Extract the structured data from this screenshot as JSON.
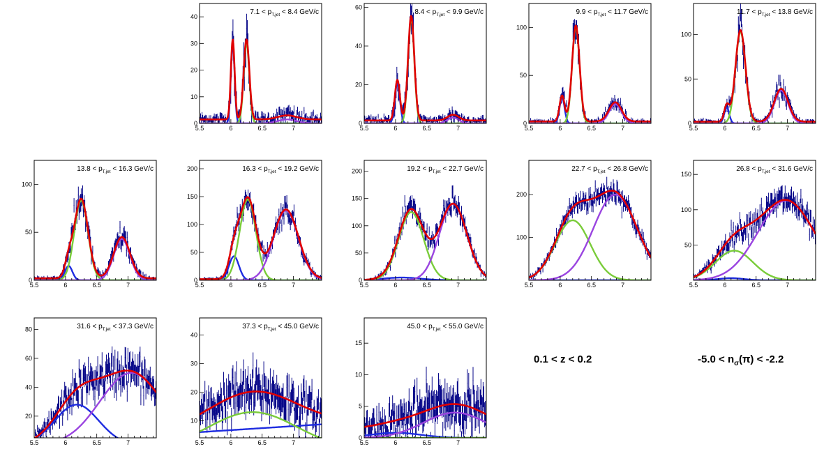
{
  "figure": {
    "z_label": "0.1 < z < 0.2",
    "nsigma_label": {
      "pre": "-5.0 < n",
      "sub": "σ",
      "post": "(π) < -2.2"
    }
  },
  "colors": {
    "data": "#0a0a8a",
    "total": "#e00000",
    "electron": "#1e2ce0",
    "pion": "#7acc3a",
    "kaon": "#9a44e0"
  },
  "chart_data": [
    {
      "type": "line",
      "label": {
        "pre": "7.1 < p",
        "sub": "T,jet",
        "post": " < 8.4 GeV/c"
      },
      "xlim": [
        5.5,
        7.45
      ],
      "xticks": [
        5.5,
        6,
        6.5,
        7
      ],
      "ylim": [
        0,
        45
      ],
      "yticks": [
        0,
        10,
        20,
        30,
        40
      ],
      "peaks": {
        "electron": {
          "A": 30,
          "mu": 6.03,
          "sigma": 0.03
        },
        "pion": {
          "A": 30,
          "mu": 6.25,
          "sigma": 0.045
        },
        "kaon": {
          "A": 1.5,
          "mu": 6.9,
          "sigma": 0.15
        }
      },
      "baseline": 1.5
    },
    {
      "type": "line",
      "label": {
        "pre": "8.4 < p",
        "sub": "T,jet",
        "post": " < 9.9 GeV/c"
      },
      "xlim": [
        5.5,
        7.45
      ],
      "xticks": [
        5.5,
        6,
        6.5,
        7
      ],
      "ylim": [
        0,
        62
      ],
      "yticks": [
        0,
        20,
        40,
        60
      ],
      "peaks": {
        "electron": {
          "A": 21,
          "mu": 6.03,
          "sigma": 0.04
        },
        "pion": {
          "A": 54,
          "mu": 6.25,
          "sigma": 0.05
        },
        "kaon": {
          "A": 3,
          "mu": 6.92,
          "sigma": 0.09
        }
      },
      "baseline": 1.5
    },
    {
      "type": "line",
      "label": {
        "pre": "9.9 < p",
        "sub": "T,jet",
        "post": " < 11.7 GeV/c"
      },
      "xlim": [
        5.5,
        7.45
      ],
      "xticks": [
        5.5,
        6,
        6.5,
        7
      ],
      "ylim": [
        0,
        125
      ],
      "yticks": [
        0,
        50,
        100
      ],
      "peaks": {
        "electron": {
          "A": 27,
          "mu": 6.03,
          "sigma": 0.04
        },
        "pion": {
          "A": 100,
          "mu": 6.25,
          "sigma": 0.06
        },
        "kaon": {
          "A": 20,
          "mu": 6.88,
          "sigma": 0.1
        }
      },
      "baseline": 2
    },
    {
      "type": "line",
      "label": {
        "pre": "11.7 < p",
        "sub": "T,jet",
        "post": " < 13.8 GeV/c"
      },
      "xlim": [
        5.5,
        7.45
      ],
      "xticks": [
        5.5,
        6,
        6.5,
        7
      ],
      "ylim": [
        0,
        135
      ],
      "yticks": [
        0,
        50,
        100
      ],
      "peaks": {
        "electron": {
          "A": 18,
          "mu": 6.03,
          "sigma": 0.04
        },
        "pion": {
          "A": 103,
          "mu": 6.25,
          "sigma": 0.08
        },
        "kaon": {
          "A": 37,
          "mu": 6.9,
          "sigma": 0.11
        }
      },
      "baseline": 2
    },
    {
      "type": "line",
      "label": {
        "pre": "13.8 < p",
        "sub": "T,jet",
        "post": " < 16.3 GeV/c"
      },
      "xlim": [
        5.5,
        7.45
      ],
      "xticks": [
        5.5,
        6,
        6.5,
        7
      ],
      "ylim": [
        0,
        125
      ],
      "yticks": [
        0,
        50,
        100
      ],
      "peaks": {
        "electron": {
          "A": 15,
          "mu": 6.05,
          "sigma": 0.06
        },
        "pion": {
          "A": 83,
          "mu": 6.25,
          "sigma": 0.11
        },
        "kaon": {
          "A": 43,
          "mu": 6.9,
          "sigma": 0.13
        }
      },
      "baseline": 2
    },
    {
      "type": "line",
      "label": {
        "pre": "16.3 < p",
        "sub": "T,jet",
        "post": " < 19.2 GeV/c"
      },
      "xlim": [
        5.5,
        7.45
      ],
      "xticks": [
        5.5,
        6,
        6.5,
        7
      ],
      "ylim": [
        0,
        215
      ],
      "yticks": [
        0,
        50,
        100,
        150,
        200
      ],
      "peaks": {
        "electron": {
          "A": 43,
          "mu": 6.05,
          "sigma": 0.08
        },
        "pion": {
          "A": 145,
          "mu": 6.27,
          "sigma": 0.13
        },
        "kaon": {
          "A": 125,
          "mu": 6.88,
          "sigma": 0.2
        }
      },
      "baseline": 2
    },
    {
      "type": "line",
      "label": {
        "pre": "19.2 < p",
        "sub": "T,jet",
        "post": " < 22.7 GeV/c"
      },
      "xlim": [
        5.5,
        7.45
      ],
      "xticks": [
        5.5,
        6,
        6.5,
        7
      ],
      "ylim": [
        0,
        220
      ],
      "yticks": [
        0,
        50,
        100,
        150,
        200
      ],
      "peaks": {
        "electron": {
          "A": 5,
          "mu": 6.1,
          "sigma": 0.3
        },
        "pion": {
          "A": 125,
          "mu": 6.25,
          "sigma": 0.2
        },
        "kaon": {
          "A": 140,
          "mu": 6.92,
          "sigma": 0.22
        }
      },
      "baseline": 0
    },
    {
      "type": "line",
      "label": {
        "pre": "22.7 < p",
        "sub": "T,jet",
        "post": " < 26.8 GeV/c"
      },
      "xlim": [
        5.5,
        7.45
      ],
      "xticks": [
        5.5,
        6,
        6.5,
        7
      ],
      "ylim": [
        0,
        280
      ],
      "yticks": [
        100,
        200
      ],
      "peaks": {
        "electron": {
          "A": 0,
          "mu": 6.1,
          "sigma": 0.3
        },
        "pion": {
          "A": 140,
          "mu": 6.2,
          "sigma": 0.28
        },
        "kaon": {
          "A": 200,
          "mu": 6.88,
          "sigma": 0.35
        }
      },
      "baseline": 0
    },
    {
      "type": "line",
      "label": {
        "pre": "26.8 < p",
        "sub": "T,jet",
        "post": " < 31.6 GeV/c"
      },
      "xlim": [
        5.5,
        7.45
      ],
      "xticks": [
        5.5,
        6,
        6.5,
        7
      ],
      "ylim": [
        0,
        170
      ],
      "yticks": [
        50,
        100,
        150
      ],
      "peaks": {
        "electron": {
          "A": 3,
          "mu": 6.1,
          "sigma": 0.2
        },
        "pion": {
          "A": 42,
          "mu": 6.15,
          "sigma": 0.3
        },
        "kaon": {
          "A": 113,
          "mu": 6.98,
          "sigma": 0.45
        }
      },
      "baseline": 0
    },
    {
      "type": "line",
      "label": {
        "pre": "31.6 < p",
        "sub": "T,jet",
        "post": " < 37.3 GeV/c"
      },
      "xlim": [
        5.5,
        7.45
      ],
      "xticks": [
        5.5,
        6,
        6.5,
        7
      ],
      "ylim": [
        5,
        88
      ],
      "yticks": [
        20,
        40,
        60,
        80
      ],
      "peaks": {
        "electron": {
          "A": 28,
          "mu": 6.18,
          "sigma": 0.35
        },
        "pion": {
          "A": 0,
          "mu": 6.2,
          "sigma": 0.3
        },
        "kaon": {
          "A": 50,
          "mu": 7.05,
          "sigma": 0.5
        }
      },
      "baseline": 0
    },
    {
      "type": "line",
      "label": {
        "pre": "37.3 < p",
        "sub": "T,jet",
        "post": " < 45.0 GeV/c"
      },
      "xlim": [
        5.5,
        7.45
      ],
      "xticks": [
        5.5,
        6,
        6.5,
        7
      ],
      "ylim": [
        4,
        46
      ],
      "yticks": [
        10,
        20,
        30,
        40
      ],
      "peaks": {
        "electron": {
          "A": 0,
          "mu": 6.2,
          "sigma": 0.3
        },
        "pion": {
          "A": 13,
          "mu": 6.35,
          "sigma": 0.7
        },
        "kaon": {
          "A": 0,
          "mu": 7.0,
          "sigma": 0.4
        }
      },
      "linear": {
        "y0": 6,
        "slope": 1.4
      },
      "baseline": 0
    },
    {
      "type": "line",
      "label": {
        "pre": "45.0 < p",
        "sub": "T,jet",
        "post": " < 55.0 GeV/c"
      },
      "xlim": [
        5.5,
        7.45
      ],
      "xticks": [
        5.5,
        6,
        6.5,
        7
      ],
      "ylim": [
        0,
        19
      ],
      "yticks": [
        0,
        5,
        10,
        15
      ],
      "peaks": {
        "electron": {
          "A": 0.8,
          "mu": 6.0,
          "sigma": 0.4
        },
        "pion": {
          "A": 0,
          "mu": 6.2,
          "sigma": 0.3
        },
        "kaon": {
          "A": 4,
          "mu": 6.95,
          "sigma": 0.5
        }
      },
      "baseline": 1.3
    }
  ]
}
